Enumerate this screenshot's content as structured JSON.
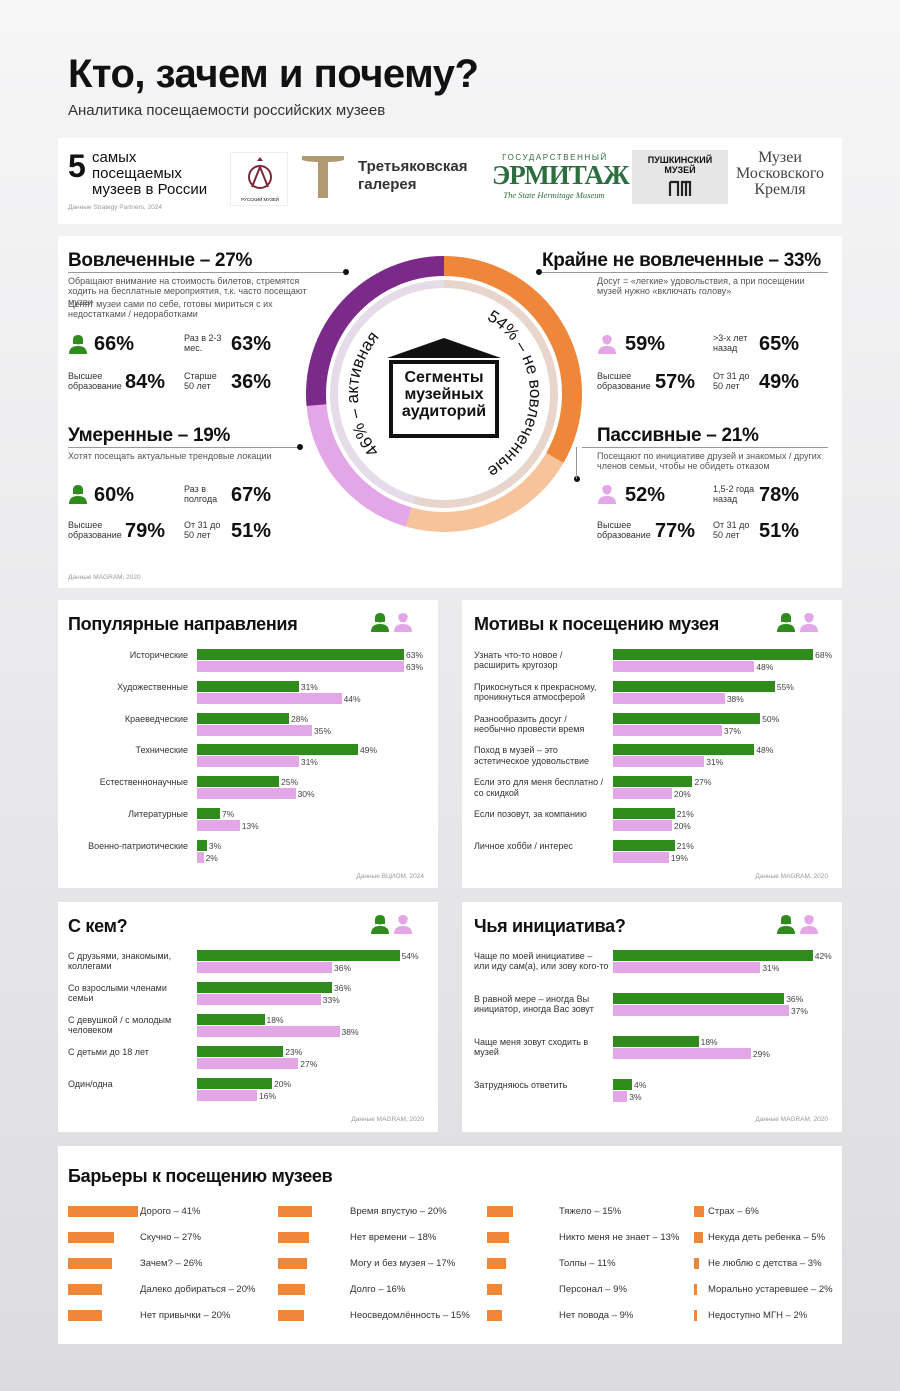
{
  "header": {
    "title": "Кто, зачем и почему?",
    "subtitle": "Аналитика посещаемости российских музеев"
  },
  "top5": {
    "number": "5",
    "label": "самых посещаемых музеев в России",
    "source": "Данные Strategy Partners, 2024",
    "museums": [
      {
        "name": "Русский музей",
        "caption": "РУССКИЙ МУЗЕЙ"
      },
      {
        "name": "Третьяковская галерея",
        "caption": "Третьяковская галерея"
      },
      {
        "name": "Государственный Эрмитаж",
        "caption_top": "ГОСУДАРСТВЕННЫЙ",
        "caption_main": "ЭРМИТАЖ",
        "caption_en": "The State Hermitage Museum"
      },
      {
        "name": "Пушкинский музей",
        "caption": "ПУШКИНСКИЙ МУЗЕЙ"
      },
      {
        "name": "Музеи Московского Кремля",
        "caption": "Музеи Московского Кремля"
      }
    ]
  },
  "segments": {
    "center_label": "Сегменты музейных аудиторий",
    "active_label": "46% – активная",
    "inactive_label": "54% – не вовлеченные",
    "source": "Данные MAGRAM, 2020",
    "colors": {
      "engaged": "#7b2a8a",
      "moderate": "#e3a6e6",
      "very_low": "#ee8739",
      "passive": "#f7c39a"
    },
    "engaged": {
      "title": "Вовлеченные – 27%",
      "desc1": "Обращают внимание на стоимость билетов, стремятся ходить на бесплатные мероприятия, т.к. часто посещают музеи",
      "desc2": "Ценят музеи сами по себе, готовы мириться с их недостатками / недоработками",
      "gender_val": "66%",
      "freq_label": "Раз в 2-3 мес.",
      "freq_val": "63%",
      "edu_label": "Высшее образование",
      "edu_val": "84%",
      "age_label": "Старше 50 лет",
      "age_val": "36%"
    },
    "moderate": {
      "title": "Умеренные – 19%",
      "desc1": "Хотят посещать актуальные трендовые локации",
      "gender_val": "60%",
      "freq_label": "Раз в полгода",
      "freq_val": "67%",
      "edu_label": "Высшее образование",
      "edu_val": "79%",
      "age_label": "От 31 до 50 лет",
      "age_val": "51%"
    },
    "very_low": {
      "title": "Крайне не вовлеченные – 33%",
      "desc1": "Досуг = «легкие» удовольствия, а при посещении музей нужно «включать голову»",
      "gender_val": "59%",
      "freq_label": ">3-х лет назад",
      "freq_val": "65%",
      "edu_label": "Высшее образование",
      "edu_val": "57%",
      "age_label": "От 31 до 50 лет",
      "age_val": "49%"
    },
    "passive": {
      "title": "Пассивные – 21%",
      "desc1": "Посещают по инициативе друзей и знакомых / других членов семьи, чтобы не обидеть отказом",
      "gender_val": "52%",
      "freq_label": "1,5-2 года назад",
      "freq_val": "78%",
      "edu_label": "Высшее образование",
      "edu_val": "77%",
      "age_label": "От 31 до 50 лет",
      "age_val": "51%"
    }
  },
  "chart_data": [
    {
      "type": "bar",
      "title": "Популярные направления",
      "source": "Данные ВЦИОМ, 2024",
      "categories": [
        "Исторические",
        "Художественные",
        "Краеведческие",
        "Технические",
        "Естественнонаучные",
        "Литературные",
        "Военно-патриотические"
      ],
      "series": [
        {
          "values": [
            63,
            31,
            28,
            49,
            25,
            7,
            3
          ],
          "color": "#2f8b1c"
        },
        {
          "values": [
            63,
            44,
            35,
            31,
            30,
            13,
            2
          ],
          "color": "#e3a6e6"
        }
      ],
      "xlim": [
        0,
        70
      ]
    },
    {
      "type": "bar",
      "title": "Мотивы к посещению музея",
      "source": "Данные MAGRAM, 2020",
      "categories": [
        "Узнать что-то новое / расширить кругозор",
        "Прикоснуться к прекрасному, проникнуться атмосферой",
        "Разнообразить досуг / необычно провести время",
        "Поход в музей – это эстетическое удовольствие",
        "Если это для меня бесплатно / со скидкой",
        "Если позовут, за компанию",
        "Личное хобби / интерес"
      ],
      "series": [
        {
          "values": [
            68,
            55,
            50,
            48,
            27,
            21,
            21
          ],
          "color": "#2f8b1c"
        },
        {
          "values": [
            48,
            38,
            37,
            31,
            20,
            20,
            19
          ],
          "color": "#e3a6e6"
        }
      ],
      "xlim": [
        0,
        70
      ]
    },
    {
      "type": "bar",
      "title": "С кем?",
      "source": "Данные MAGRAM, 2020",
      "categories": [
        "С друзьями, знакомыми, коллегами",
        "Со взрослыми членами семьи",
        "С девушкой / с молодым человеком",
        "С детьми до 18 лет",
        "Один/одна"
      ],
      "series": [
        {
          "values": [
            54,
            36,
            18,
            23,
            20
          ],
          "color": "#2f8b1c"
        },
        {
          "values": [
            36,
            33,
            38,
            27,
            16
          ],
          "color": "#e3a6e6"
        }
      ],
      "xlim": [
        0,
        56
      ]
    },
    {
      "type": "bar",
      "title": "Чья инициатива?",
      "source": "Данные MAGRAM, 2020",
      "categories": [
        "Чаще по моей инициативе – или иду сам(а), или зову кого-то",
        "В равной мере – иногда Вы инициатор, иногда Вас зовут",
        "Чаще меня зовут сходить в музей",
        "Затрудняюсь ответить"
      ],
      "series": [
        {
          "values": [
            42,
            36,
            18,
            4
          ],
          "color": "#2f8b1c"
        },
        {
          "values": [
            31,
            37,
            29,
            3
          ],
          "color": "#e3a6e6"
        }
      ],
      "xlim": [
        0,
        45
      ]
    },
    {
      "type": "bar",
      "title": "Барьеры к посещению музеев",
      "categories": [
        "Дорого",
        "Скучно",
        "Зачем?",
        "Далеко добираться",
        "Нет привычки",
        "Время впустую",
        "Нет времени",
        "Могу и без музея",
        "Долго",
        "Неосведомлённость",
        "Тяжело",
        "Никто меня не знает",
        "Толпы",
        "Персонал",
        "Нет повода",
        "Страх",
        "Некуда деть ребенка",
        "Не люблю с детства",
        "Морально устаревшее",
        "Недоступно МГН"
      ],
      "labels": [
        "Дорого – 41%",
        "Скучно – 27%",
        "Зачем? – 26%",
        "Далеко добираться – 20%",
        "Нет привычки – 20%",
        "Время впустую – 20%",
        "Нет времени – 18%",
        "Могу и без музея – 17%",
        "Долго – 16%",
        "Неосведомлённость – 15%",
        "Тяжело – 15%",
        "Никто меня не знает – 13%",
        "Толпы – 11%",
        "Персонал – 9%",
        "Нет повода – 9%",
        "Страх – 6%",
        "Некуда деть ребенка – 5%",
        "Не люблю с детства – 3%",
        "Морально устаревшее – 2%",
        "Недоступно МГН – 2%"
      ],
      "values": [
        41,
        27,
        26,
        20,
        20,
        20,
        18,
        17,
        16,
        15,
        15,
        13,
        11,
        9,
        9,
        6,
        5,
        3,
        2,
        2
      ],
      "color": "#ee8739"
    }
  ]
}
